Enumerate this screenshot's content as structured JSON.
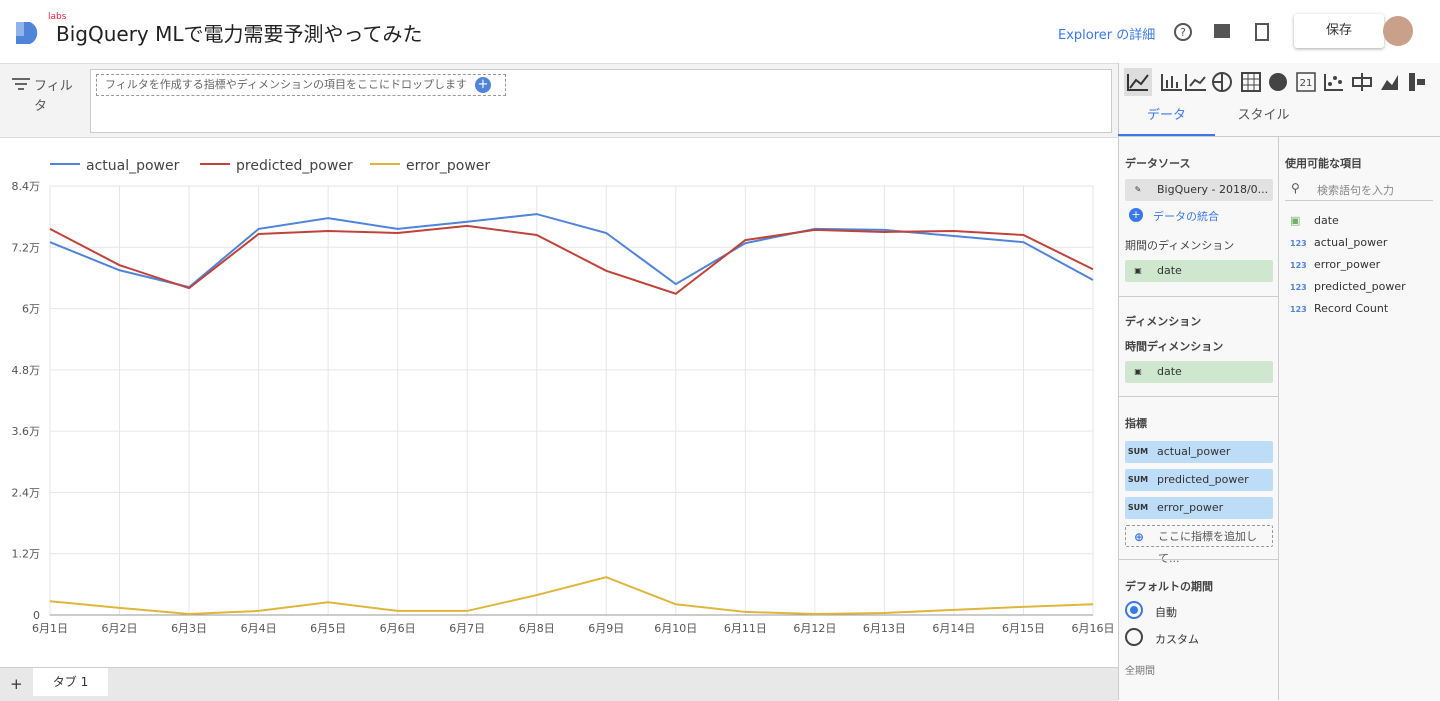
{
  "header": {
    "logo_badge": "labs",
    "title": "BigQuery MLで電力需要予測やってみた",
    "explorer": "Explorer の詳細",
    "save": "保存"
  },
  "filter": {
    "label": "フィルタ",
    "placeholder": "フィルタを作成する指標やディメンションの項目をここにドロップします"
  },
  "chart_data": {
    "type": "line",
    "categories": [
      "6月1日",
      "6月2日",
      "6月3日",
      "6月4日",
      "6月5日",
      "6月6日",
      "6月7日",
      "6月8日",
      "6月9日",
      "6月10日",
      "6月11日",
      "6月12日",
      "6月13日",
      "6月14日",
      "6月15日",
      "6月16日"
    ],
    "series": [
      {
        "name": "actual_power",
        "color": "#4f84d9",
        "values": [
          73000,
          67500,
          64200,
          75600,
          77700,
          75600,
          77000,
          78500,
          74800,
          64800,
          72800,
          75600,
          75400,
          74200,
          73000,
          65600
        ]
      },
      {
        "name": "predicted_power",
        "color": "#c0433a",
        "values": [
          75600,
          68500,
          64000,
          74600,
          75200,
          74800,
          76200,
          74400,
          67400,
          62900,
          73400,
          75400,
          75000,
          75200,
          74400,
          67700
        ]
      },
      {
        "name": "error_power",
        "color": "#e0b53c",
        "values": [
          2700,
          1400,
          200,
          800,
          2500,
          800,
          800,
          3900,
          7400,
          2100,
          600,
          200,
          400,
          1000,
          1600,
          2100
        ]
      }
    ],
    "ylim": [
      0,
      84000
    ],
    "yticks": [
      0,
      {
        "value": 12000,
        "label": "1.2万"
      },
      {
        "value": 24000,
        "label": "2.4万"
      },
      {
        "value": 36000,
        "label": "3.6万"
      },
      {
        "value": 48000,
        "label": "4.8万"
      },
      {
        "value": 60000,
        "label": "6万"
      },
      {
        "value": 72000,
        "label": "7.2万"
      },
      {
        "value": 84000,
        "label": "8.4万"
      }
    ],
    "grid": true,
    "legend": "top"
  },
  "toolbar": {
    "scorecard_icon": "21"
  },
  "panel": {
    "tabs": [
      "データ",
      "スタイル"
    ],
    "data_source_heading": "データソース",
    "data_source": "BigQuery - 2018/0...",
    "blend": "データの統合",
    "date_range_dimension_heading": "期間のディメンション",
    "date_range_dimension": "date",
    "dimension_heading": "ディメンション",
    "time_dimension_heading": "時間ディメンション",
    "time_dimension": "date",
    "metric_heading": "指標",
    "metrics": [
      {
        "agg": "SUM",
        "name": "actual_power"
      },
      {
        "agg": "SUM",
        "name": "predicted_power"
      },
      {
        "agg": "SUM",
        "name": "error_power"
      }
    ],
    "add_metric": "ここに指標を追加して...",
    "default_period_heading": "デフォルトの期間",
    "period_options": [
      "自動",
      "カスタム"
    ],
    "all_period": "全期間",
    "available_fields_heading": "使用可能な項目",
    "search_placeholder": "検索語句を入力",
    "fields": [
      {
        "name": "date"
      },
      {
        "icon": "123",
        "name": "actual_power"
      },
      {
        "icon": "123",
        "name": "error_power"
      },
      {
        "icon": "123",
        "name": "predicted_power"
      },
      {
        "icon": "123",
        "name": "Record Count"
      }
    ]
  },
  "bottom_tabs": {
    "add": "+",
    "tabs": [
      "タブ 1"
    ]
  }
}
